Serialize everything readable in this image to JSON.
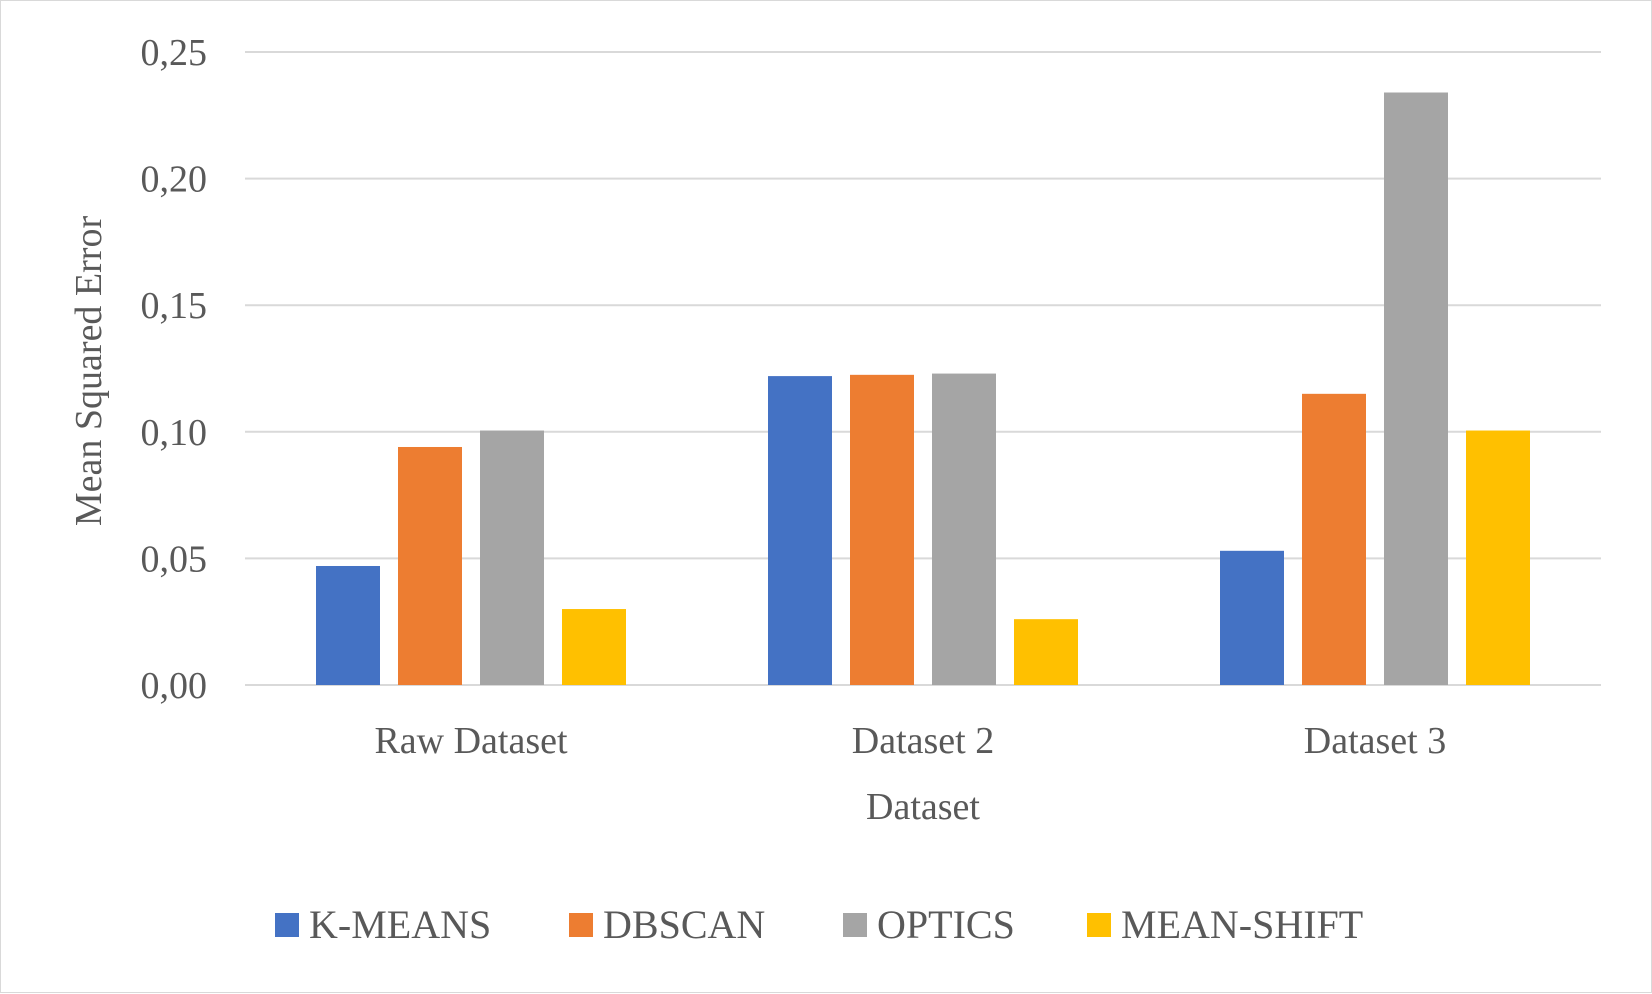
{
  "chart_data": {
    "type": "bar",
    "title": "",
    "xlabel": "Dataset",
    "ylabel": "Mean Squared Error",
    "categories": [
      "Raw Dataset",
      "Dataset 2",
      "Dataset 3"
    ],
    "series": [
      {
        "name": "K-MEANS",
        "color": "#4472c4",
        "values": [
          0.047,
          0.122,
          0.053
        ]
      },
      {
        "name": "DBSCAN",
        "color": "#ed7d31",
        "values": [
          0.094,
          0.1225,
          0.115
        ]
      },
      {
        "name": "OPTICS",
        "color": "#a5a5a5",
        "values": [
          0.1005,
          0.123,
          0.234
        ]
      },
      {
        "name": "MEAN-SHIFT",
        "color": "#ffc000",
        "values": [
          0.03,
          0.026,
          0.1005
        ]
      }
    ],
    "ylim": [
      0,
      0.25
    ],
    "yticks": [
      "0,00",
      "0,05",
      "0,10",
      "0,15",
      "0,20",
      "0,25"
    ],
    "ytick_values": [
      0,
      0.05,
      0.1,
      0.15,
      0.2,
      0.25
    ],
    "grid": true,
    "legend_position": "bottom",
    "gridline_color": "#d9d9d9"
  }
}
